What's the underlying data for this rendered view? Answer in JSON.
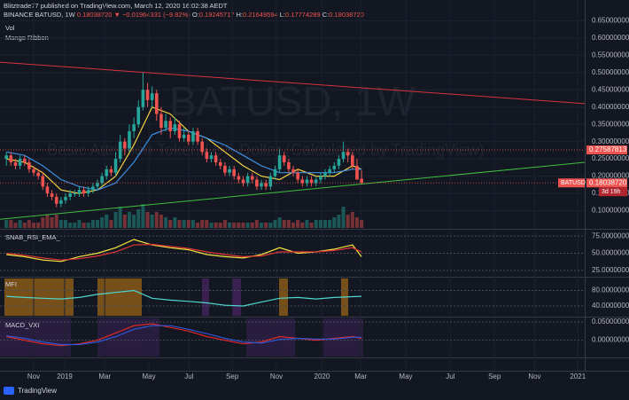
{
  "header": {
    "author": "Blitztrade77 published on TradingView.com, March 12, 2020 16:02:38 AEDT",
    "symbol": "BINANCE:BATUSD, 1W",
    "last": "0.18038720",
    "change": "▼ −0.01964331 (−9.82%)",
    "ohlc": [
      "O:",
      "0.19245717",
      "H:",
      "0.21649594",
      "L:",
      "0.17774289",
      "C:",
      "0.18038720"
    ]
  },
  "footer": "TradingView",
  "chart_data": [
    {
      "type": "candlestick",
      "title": "BATUSD, 1W",
      "subtitle": "Basic Attention Token / US Dollar (Calculated by TradingView)",
      "indicator_labels": [
        "Vol",
        "Mango Ribbon"
      ],
      "colors": {
        "up": "#26a69a",
        "down": "#ef5350"
      },
      "candles": [
        [
          0.25,
          0.27,
          0.23,
          0.26
        ],
        [
          0.26,
          0.27,
          0.23,
          0.24
        ],
        [
          0.24,
          0.25,
          0.22,
          0.23
        ],
        [
          0.23,
          0.26,
          0.22,
          0.25
        ],
        [
          0.25,
          0.26,
          0.23,
          0.24
        ],
        [
          0.24,
          0.25,
          0.21,
          0.22
        ],
        [
          0.22,
          0.23,
          0.2,
          0.21
        ],
        [
          0.21,
          0.22,
          0.19,
          0.2
        ],
        [
          0.2,
          0.21,
          0.16,
          0.17
        ],
        [
          0.17,
          0.18,
          0.14,
          0.15
        ],
        [
          0.15,
          0.16,
          0.13,
          0.14
        ],
        [
          0.14,
          0.15,
          0.11,
          0.12
        ],
        [
          0.12,
          0.14,
          0.11,
          0.13
        ],
        [
          0.13,
          0.15,
          0.12,
          0.14
        ],
        [
          0.14,
          0.16,
          0.13,
          0.15
        ],
        [
          0.15,
          0.16,
          0.14,
          0.15
        ],
        [
          0.15,
          0.17,
          0.14,
          0.16
        ],
        [
          0.16,
          0.17,
          0.14,
          0.15
        ],
        [
          0.15,
          0.17,
          0.14,
          0.16
        ],
        [
          0.16,
          0.18,
          0.15,
          0.17
        ],
        [
          0.17,
          0.19,
          0.16,
          0.18
        ],
        [
          0.18,
          0.21,
          0.17,
          0.2
        ],
        [
          0.2,
          0.23,
          0.19,
          0.22
        ],
        [
          0.22,
          0.23,
          0.2,
          0.21
        ],
        [
          0.21,
          0.27,
          0.2,
          0.25
        ],
        [
          0.25,
          0.32,
          0.24,
          0.3
        ],
        [
          0.3,
          0.31,
          0.26,
          0.28
        ],
        [
          0.28,
          0.35,
          0.27,
          0.33
        ],
        [
          0.33,
          0.37,
          0.31,
          0.35
        ],
        [
          0.35,
          0.42,
          0.34,
          0.4
        ],
        [
          0.4,
          0.5,
          0.39,
          0.45
        ],
        [
          0.45,
          0.47,
          0.4,
          0.42
        ],
        [
          0.42,
          0.46,
          0.4,
          0.44
        ],
        [
          0.44,
          0.45,
          0.36,
          0.38
        ],
        [
          0.38,
          0.4,
          0.32,
          0.34
        ],
        [
          0.34,
          0.38,
          0.33,
          0.36
        ],
        [
          0.36,
          0.37,
          0.31,
          0.33
        ],
        [
          0.33,
          0.37,
          0.32,
          0.35
        ],
        [
          0.35,
          0.36,
          0.3,
          0.31
        ],
        [
          0.31,
          0.34,
          0.3,
          0.32
        ],
        [
          0.32,
          0.33,
          0.29,
          0.3
        ],
        [
          0.3,
          0.34,
          0.29,
          0.33
        ],
        [
          0.33,
          0.34,
          0.29,
          0.3
        ],
        [
          0.3,
          0.31,
          0.26,
          0.27
        ],
        [
          0.27,
          0.28,
          0.24,
          0.25
        ],
        [
          0.25,
          0.27,
          0.24,
          0.26
        ],
        [
          0.26,
          0.27,
          0.23,
          0.24
        ],
        [
          0.24,
          0.25,
          0.22,
          0.23
        ],
        [
          0.23,
          0.24,
          0.2,
          0.21
        ],
        [
          0.21,
          0.23,
          0.2,
          0.22
        ],
        [
          0.22,
          0.23,
          0.19,
          0.2
        ],
        [
          0.2,
          0.21,
          0.18,
          0.19
        ],
        [
          0.19,
          0.2,
          0.17,
          0.18
        ],
        [
          0.18,
          0.21,
          0.17,
          0.2
        ],
        [
          0.2,
          0.21,
          0.18,
          0.19
        ],
        [
          0.19,
          0.2,
          0.16,
          0.17
        ],
        [
          0.17,
          0.19,
          0.16,
          0.18
        ],
        [
          0.18,
          0.19,
          0.16,
          0.17
        ],
        [
          0.17,
          0.21,
          0.16,
          0.2
        ],
        [
          0.2,
          0.23,
          0.19,
          0.22
        ],
        [
          0.22,
          0.28,
          0.21,
          0.26
        ],
        [
          0.26,
          0.27,
          0.23,
          0.24
        ],
        [
          0.24,
          0.25,
          0.21,
          0.22
        ],
        [
          0.22,
          0.23,
          0.2,
          0.21
        ],
        [
          0.21,
          0.22,
          0.18,
          0.19
        ],
        [
          0.19,
          0.2,
          0.17,
          0.18
        ],
        [
          0.18,
          0.2,
          0.17,
          0.19
        ],
        [
          0.19,
          0.2,
          0.17,
          0.18
        ],
        [
          0.18,
          0.2,
          0.17,
          0.19
        ],
        [
          0.19,
          0.21,
          0.18,
          0.2
        ],
        [
          0.2,
          0.22,
          0.19,
          0.21
        ],
        [
          0.21,
          0.23,
          0.2,
          0.22
        ],
        [
          0.22,
          0.24,
          0.21,
          0.23
        ],
        [
          0.23,
          0.26,
          0.22,
          0.25
        ],
        [
          0.25,
          0.3,
          0.24,
          0.27
        ],
        [
          0.27,
          0.28,
          0.24,
          0.26
        ],
        [
          0.26,
          0.27,
          0.22,
          0.23
        ],
        [
          0.23,
          0.25,
          0.19,
          0.19
        ],
        [
          0.19245717,
          0.21649594,
          0.17774289,
          0.1803872
        ]
      ],
      "volume": [
        3,
        3,
        2,
        3,
        2,
        3,
        2,
        2,
        4,
        5,
        4,
        5,
        3,
        3,
        2,
        2,
        3,
        2,
        2,
        3,
        3,
        4,
        5,
        3,
        6,
        8,
        5,
        6,
        5,
        7,
        9,
        6,
        5,
        6,
        5,
        4,
        3,
        4,
        3,
        3,
        3,
        3,
        2,
        3,
        3,
        2,
        2,
        2,
        3,
        2,
        2,
        2,
        2,
        2,
        2,
        3,
        2,
        2,
        2,
        3,
        4,
        3,
        3,
        2,
        3,
        2,
        3,
        2,
        3,
        3,
        3,
        3,
        4,
        5,
        8,
        5,
        6,
        4,
        3
      ],
      "ma": {
        "x": [
          0,
          4,
          8,
          12,
          16,
          20,
          24,
          28,
          32,
          36,
          40,
          44,
          48,
          52,
          56,
          60,
          64,
          68,
          72,
          76,
          78
        ],
        "series": [
          {
            "color": "#f5d142",
            "values": [
              0.25,
              0.24,
              0.21,
              0.16,
              0.15,
              0.16,
              0.2,
              0.29,
              0.4,
              0.38,
              0.33,
              0.31,
              0.27,
              0.23,
              0.2,
              0.19,
              0.22,
              0.2,
              0.2,
              0.23,
              0.22
            ]
          },
          {
            "color": "#3d8fe0",
            "values": [
              0.27,
              0.26,
              0.23,
              0.19,
              0.17,
              0.16,
              0.18,
              0.24,
              0.32,
              0.34,
              0.33,
              0.31,
              0.29,
              0.26,
              0.23,
              0.21,
              0.21,
              0.21,
              0.21,
              0.22,
              0.22
            ]
          }
        ]
      },
      "trendlines": [
        {
          "color": "#d6343f",
          "x": [
            -1.4,
            127
          ],
          "values": [
            0.53,
            0.41
          ]
        },
        {
          "color": "#3fbf3f",
          "x": [
            -1.4,
            127
          ],
          "values": [
            0.075,
            0.24
          ]
        }
      ],
      "price_tags": [
        {
          "value": 0.27587813,
          "label": "0.27587813"
        },
        {
          "value": 0.1803872,
          "label": "0.18038720",
          "text": "BATUSD"
        }
      ],
      "countdown": "3d 19h",
      "ylim": [
        0.05,
        0.71
      ],
      "yticks": [
        {
          "value": 0.1,
          "label": "0.10000000"
        },
        {
          "value": 0.15,
          "label": "0.15000000"
        },
        {
          "value": 0.2,
          "label": "0.20000000"
        },
        {
          "value": 0.25,
          "label": "0.25000000"
        },
        {
          "value": 0.3,
          "label": "0.30000000"
        },
        {
          "value": 0.35,
          "label": "0.35000000"
        },
        {
          "value": 0.4,
          "label": "0.40000000"
        },
        {
          "value": 0.45,
          "label": "0.45000000"
        },
        {
          "value": 0.5,
          "label": "0.50000000"
        },
        {
          "value": 0.55,
          "label": "0.55000000"
        },
        {
          "value": 0.6,
          "label": "0.60000000"
        },
        {
          "value": 0.65,
          "label": "0.65000000"
        }
      ],
      "xlim": [
        -1.4,
        127
      ],
      "xticks": [
        {
          "value": 6.0,
          "label": "Nov"
        },
        {
          "value": 12.8,
          "label": "2019"
        },
        {
          "value": 21.6,
          "label": "Mar"
        },
        {
          "value": 31.3,
          "label": "May"
        },
        {
          "value": 40.1,
          "label": "Jul"
        },
        {
          "value": 49.6,
          "label": "Sep"
        },
        {
          "value": 59.3,
          "label": "Nov"
        },
        {
          "value": 69.3,
          "label": "2020"
        },
        {
          "value": 77.8,
          "label": "Mar"
        },
        {
          "value": 87.7,
          "label": "May"
        },
        {
          "value": 97.5,
          "label": "Jul"
        },
        {
          "value": 107.2,
          "label": "Sep"
        },
        {
          "value": 116,
          "label": "Nov"
        },
        {
          "value": 125.5,
          "label": "2021"
        }
      ]
    },
    {
      "type": "line",
      "title": "SNAB_RSI_EMA_",
      "x": [
        0,
        4,
        8,
        12,
        16,
        20,
        24,
        28,
        32,
        36,
        40,
        44,
        48,
        52,
        56,
        60,
        64,
        68,
        72,
        76,
        78
      ],
      "series": [
        {
          "color": "#f5e642",
          "values": [
            48,
            45,
            40,
            38,
            45,
            50,
            58,
            70,
            62,
            58,
            55,
            48,
            45,
            43,
            48,
            58,
            50,
            52,
            56,
            62,
            45
          ]
        },
        {
          "color": "#e03535",
          "values": [
            50,
            47,
            43,
            40,
            42,
            46,
            52,
            62,
            63,
            60,
            57,
            52,
            48,
            45,
            46,
            52,
            52,
            52,
            54,
            58,
            52
          ]
        }
      ],
      "ylim": [
        17,
        83
      ],
      "yticks": [
        {
          "value": 25,
          "label": "25.00000000"
        },
        {
          "value": 50,
          "label": "50.00000000"
        },
        {
          "value": 75,
          "label": "75.00000000"
        }
      ]
    },
    {
      "type": "line",
      "title": "MFI",
      "x": [
        0,
        4,
        8,
        12,
        16,
        20,
        24,
        28,
        32,
        36,
        40,
        44,
        48,
        52,
        56,
        60,
        64,
        68,
        72,
        76,
        78
      ],
      "series": [
        {
          "color": "#4fd6d0",
          "values": [
            65,
            62,
            60,
            58,
            62,
            70,
            75,
            80,
            60,
            55,
            52,
            48,
            42,
            40,
            50,
            60,
            62,
            58,
            62,
            64,
            65
          ]
        }
      ],
      "ylim": [
        15,
        113
      ],
      "yticks": [
        {
          "value": 40,
          "label": "40.00000000"
        },
        {
          "value": 80,
          "label": "80.00000000"
        }
      ]
    },
    {
      "type": "line",
      "title": "MACD_VXI",
      "x": [
        0,
        4,
        8,
        12,
        16,
        20,
        24,
        28,
        32,
        36,
        40,
        44,
        48,
        52,
        56,
        60,
        64,
        68,
        72,
        76,
        78
      ],
      "series": [
        {
          "color": "#e02828",
          "values": [
            0.01,
            0,
            -0.01,
            -0.015,
            -0.01,
            0,
            0.02,
            0.04,
            0.045,
            0.035,
            0.025,
            0.01,
            0,
            -0.01,
            -0.005,
            0.01,
            0.005,
            0,
            0.005,
            0.01,
            0.005
          ]
        },
        {
          "color": "#2f57d6",
          "values": [
            0.012,
            0.005,
            -0.005,
            -0.012,
            -0.012,
            -0.005,
            0.01,
            0.03,
            0.04,
            0.04,
            0.03,
            0.018,
            0.005,
            -0.005,
            -0.008,
            0.002,
            0.005,
            0.003,
            0.003,
            0.008,
            0.008
          ]
        }
      ],
      "ylim": [
        -0.045,
        0.06
      ],
      "yticks": [
        {
          "value": 0,
          "label": "0.00000000"
        },
        {
          "value": 0.05,
          "label": "0.05000000"
        }
      ]
    }
  ]
}
